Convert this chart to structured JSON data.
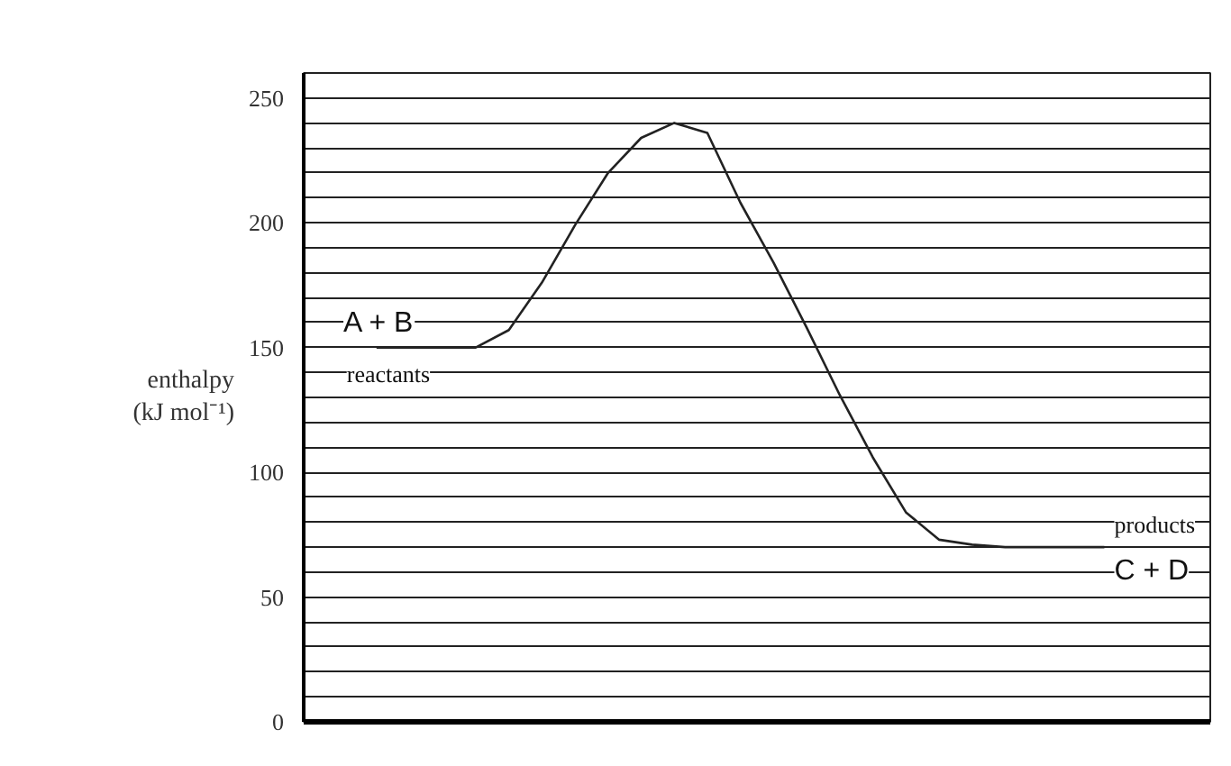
{
  "chart_data": {
    "type": "line",
    "ylabel": "enthalpy (kJ mol⁻¹)",
    "categories": [
      null,
      null,
      null,
      null,
      null,
      null,
      null,
      null,
      null,
      null,
      null,
      null,
      null,
      null,
      null,
      null,
      null,
      null,
      null,
      null,
      null,
      null,
      null
    ],
    "series": [
      {
        "color": "#222222",
        "values": [
          150,
          150,
          150,
          150,
          157,
          176,
          199,
          220,
          234,
          240,
          236,
          208,
          184,
          158,
          131,
          106,
          84,
          73,
          71,
          70,
          70,
          70,
          70
        ]
      }
    ],
    "ylim": [
      0,
      260
    ],
    "yticks": [
      0,
      {
        "value": 10,
        "label": null
      },
      {
        "value": 20,
        "label": null
      },
      {
        "value": 30,
        "label": null
      },
      {
        "value": 40,
        "label": null
      },
      50,
      {
        "value": 60,
        "label": null
      },
      {
        "value": 70,
        "label": null
      },
      {
        "value": 80,
        "label": null
      },
      {
        "value": 90,
        "label": null
      },
      100,
      {
        "value": 110,
        "label": null
      },
      {
        "value": 120,
        "label": null
      },
      {
        "value": 130,
        "label": null
      },
      {
        "value": 140,
        "label": null
      },
      150,
      {
        "value": 160,
        "label": null
      },
      {
        "value": 170,
        "label": null
      },
      {
        "value": 180,
        "label": null
      },
      {
        "value": 190,
        "label": null
      },
      200,
      {
        "value": 210,
        "label": null
      },
      {
        "value": 220,
        "label": null
      },
      {
        "value": 230,
        "label": null
      },
      {
        "value": 240,
        "label": null
      },
      250
    ],
    "grid": "y",
    "tick_labels": "y",
    "marker": "none",
    "line_style": "solid",
    "annotations": [
      "A + B",
      "reactants",
      "products",
      "C + D"
    ]
  }
}
